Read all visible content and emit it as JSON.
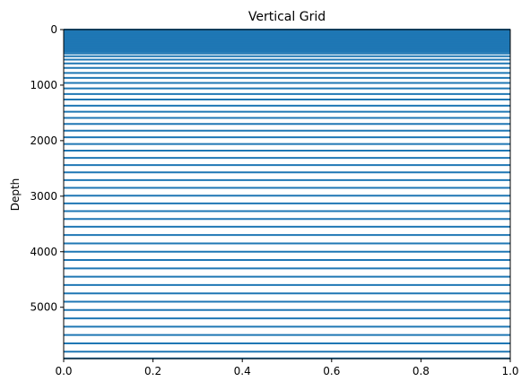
{
  "chart_data": {
    "type": "line",
    "title": "Vertical Grid",
    "xlabel": "",
    "ylabel": "Depth",
    "xlim": [
      0,
      1
    ],
    "ylim": [
      5925,
      0
    ],
    "y_inverted": true,
    "grid": false,
    "x_ticks": [
      0.0,
      0.2,
      0.4,
      0.6,
      0.8,
      1.0
    ],
    "x_tick_labels": [
      "0.0",
      "0.2",
      "0.4",
      "0.6",
      "0.8",
      "1.0"
    ],
    "y_ticks": [
      0,
      1000,
      2000,
      3000,
      4000,
      5000
    ],
    "y_tick_labels": [
      "0",
      "1000",
      "2000",
      "3000",
      "4000",
      "5000"
    ],
    "line_color": "#1f77b4",
    "series": [
      {
        "depths": [
          0,
          10,
          20,
          30,
          40,
          50,
          60,
          70,
          80,
          90,
          100,
          110,
          120,
          130,
          140,
          150,
          160,
          170,
          180,
          190,
          200,
          210,
          220,
          230,
          240,
          250,
          260,
          270,
          280,
          290,
          300,
          310,
          320,
          330,
          340,
          350,
          360,
          370,
          380,
          390,
          400,
          430,
          480,
          540,
          610,
          690,
          780,
          870,
          960,
          1060,
          1160,
          1260,
          1370,
          1480,
          1590,
          1700,
          1820,
          1940,
          2060,
          2180,
          2310,
          2440,
          2570,
          2710,
          2850,
          2990,
          3130,
          3270,
          3410,
          3550,
          3700,
          3850,
          4000,
          4150,
          4300,
          4450,
          4600,
          4750,
          4900,
          5050,
          5200,
          5350,
          5500,
          5650,
          5800,
          5920
        ]
      }
    ]
  }
}
